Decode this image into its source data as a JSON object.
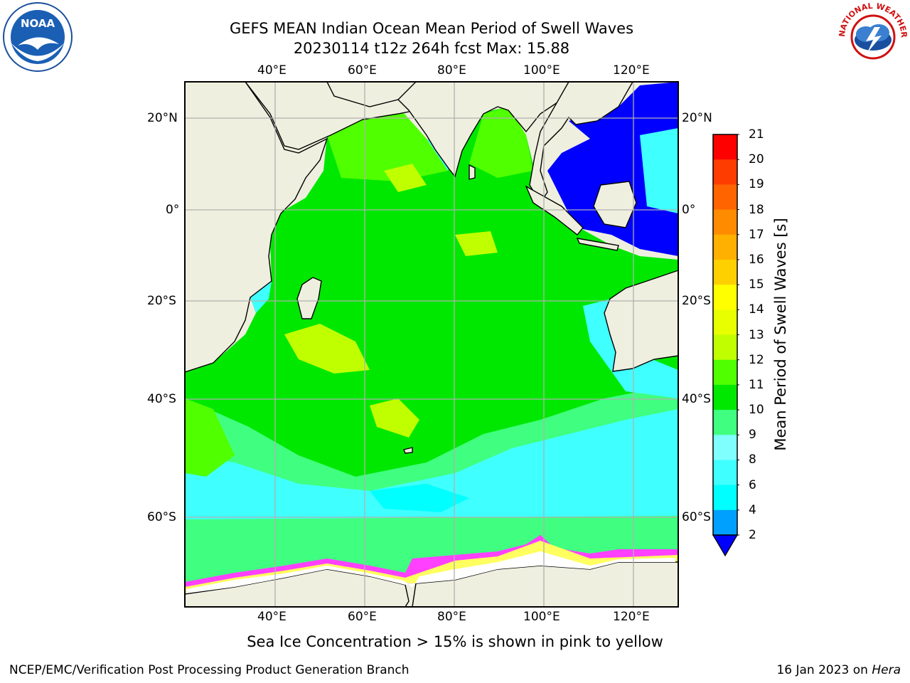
{
  "title": {
    "line1": "GEFS MEAN Indian Ocean Mean Period of Swell Waves",
    "line2": "20230114 t12z 264h fcst   Max: 15.88"
  },
  "map": {
    "extent_lon": [
      20,
      130
    ],
    "extent_lat": [
      -76,
      28
    ],
    "lon_ticks": [
      "40°E",
      "60°E",
      "80°E",
      "100°E",
      "120°E"
    ],
    "lat_ticks": [
      "20°N",
      "0°",
      "20°S",
      "40°S",
      "60°S"
    ],
    "land_color": "#efefdf",
    "grid_color": "#b0b0b0"
  },
  "colorbar": {
    "label": "Mean Period of Swell Waves [s]",
    "ticks": [
      "21",
      "20",
      "19",
      "18",
      "17",
      "16",
      "15",
      "14",
      "13",
      "12",
      "11",
      "10",
      "9",
      "8",
      "6",
      "4",
      "2"
    ],
    "colors_low_to_high": [
      "#0020ff",
      "#00a0ff",
      "#00ffff",
      "#40ffff",
      "#80ffff",
      "#40ff80",
      "#00e800",
      "#50ff00",
      "#c0ff00",
      "#e8ff00",
      "#ffff00",
      "#ffd000",
      "#ffb000",
      "#ff8c00",
      "#ff6400",
      "#ff3c00",
      "#ff0000"
    ],
    "extend_color": "#0000ff"
  },
  "note": "Sea Ice Concentration > 15% is shown in pink to yellow",
  "footer": {
    "left": "NCEP/EMC/Verification Post Processing Product Generation Branch",
    "right_prefix": "16 Jan 2023 on ",
    "right_host": "Hera"
  },
  "logos": {
    "noaa_text": "NOAA",
    "nws_text": "NATIONAL WEATHER SERVICE"
  }
}
